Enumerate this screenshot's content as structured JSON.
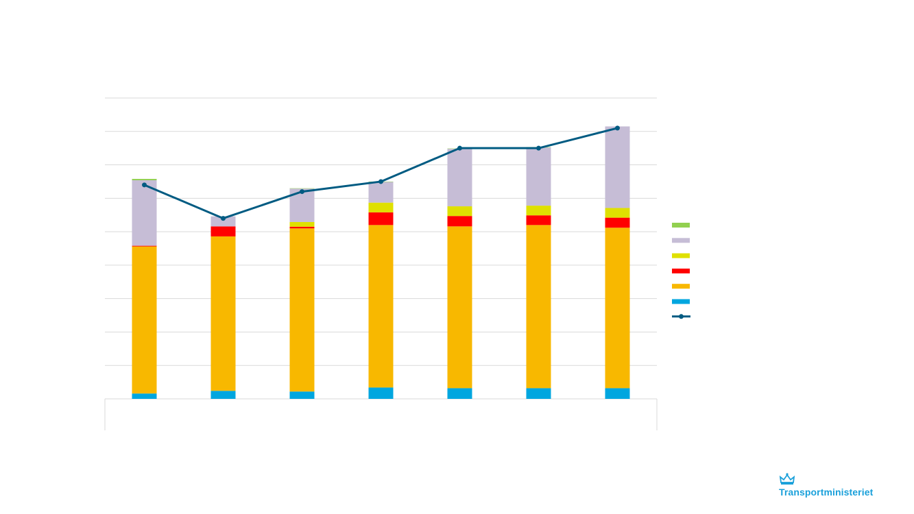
{
  "chart_data": {
    "type": "bar",
    "stacked": true,
    "categories": [
      "",
      "",
      "",
      "",
      "",
      "",
      ""
    ],
    "series": [
      {
        "color": "#00a6df",
        "values": [
          0.16,
          0.24,
          0.22,
          0.34,
          0.32,
          0.32,
          0.32
        ]
      },
      {
        "color": "#f8b800",
        "values": [
          4.4,
          4.62,
          4.88,
          4.86,
          4.84,
          4.88,
          4.8
        ]
      },
      {
        "color": "#ff0000",
        "values": [
          0.02,
          0.3,
          0.05,
          0.38,
          0.31,
          0.29,
          0.3
        ]
      },
      {
        "color": "#dfe000",
        "values": [
          0.0,
          0.0,
          0.14,
          0.29,
          0.29,
          0.29,
          0.29
        ]
      },
      {
        "color": "#c6bdd6",
        "values": [
          1.96,
          0.3,
          1.0,
          0.62,
          1.72,
          1.74,
          2.44
        ]
      },
      {
        "color": "#92d050",
        "values": [
          0.04,
          0.0,
          0.01,
          0.01,
          0.01,
          0.01,
          0.0
        ]
      }
    ],
    "line": {
      "color": "#005b82",
      "values": [
        6.4,
        5.4,
        6.2,
        6.5,
        7.5,
        7.5,
        8.1
      ]
    },
    "ylim": [
      0,
      9
    ],
    "gridlines": 9,
    "grid": true,
    "legend_position": "right"
  },
  "logo": {
    "text": "Transportministeriet",
    "icon": "crown-icon",
    "color": "#1aa0da"
  }
}
